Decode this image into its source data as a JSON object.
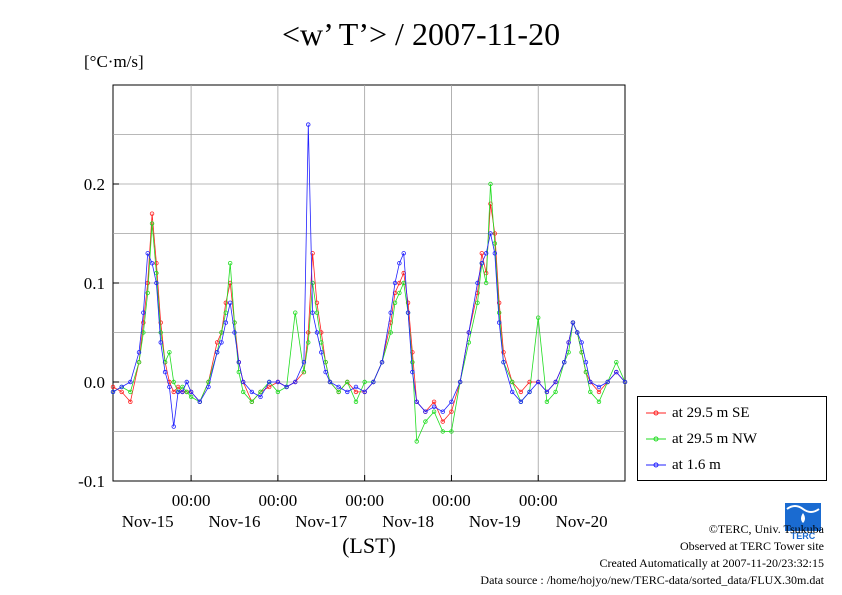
{
  "title": "<w’ T’> / 2007-11-20",
  "unit": "[°C·m/s]",
  "credits": {
    "copyright": "©TERC, Univ. Tsukuba",
    "observed": "Observed at TERC Tower site",
    "created": "Created Automatically at 2007-11-20/23:32:15",
    "source": "Data source : /home/hojyo/new/TERC-data/sorted_data/FLUX.30m.dat"
  },
  "logo_text": "TERC",
  "chart_data": {
    "type": "line",
    "title": "<w’ T’> / 2007-11-20",
    "ylabel": "[°C·m/s]",
    "xlabel": "(LST)",
    "ylim": [
      -0.1,
      0.3
    ],
    "xlim": [
      -0.9,
      5.0
    ],
    "grid": true,
    "legend_position": "bottom-right outside",
    "y_ticks": [
      -0.1,
      0.0,
      0.1,
      0.2
    ],
    "y_tick_labels": [
      "-0.1",
      "0.0",
      "0.1",
      "0.2"
    ],
    "x_ticks": [
      0,
      1,
      2,
      3,
      4
    ],
    "x_tick_time_label": "00:00",
    "x_tick_day_labels": [
      "Nov-15",
      "Nov-16",
      "Nov-17",
      "Nov-18",
      "Nov-19",
      "Nov-20"
    ],
    "x_unit": "days (00:00 of Nov-16 = 0)",
    "series": [
      {
        "name": "at 29.5 m SE",
        "color": "#ff2020",
        "x": [
          -0.9,
          -0.8,
          -0.7,
          -0.6,
          -0.55,
          -0.5,
          -0.45,
          -0.4,
          -0.35,
          -0.3,
          -0.25,
          -0.2,
          -0.15,
          -0.1,
          -0.05,
          0,
          0.1,
          0.2,
          0.3,
          0.35,
          0.4,
          0.45,
          0.5,
          0.55,
          0.6,
          0.7,
          0.8,
          0.9,
          1.0,
          1.1,
          1.2,
          1.3,
          1.35,
          1.4,
          1.45,
          1.5,
          1.55,
          1.6,
          1.7,
          1.8,
          1.9,
          2.0,
          2.1,
          2.2,
          2.3,
          2.35,
          2.4,
          2.45,
          2.5,
          2.55,
          2.6,
          2.7,
          2.8,
          2.9,
          3.0,
          3.1,
          3.2,
          3.3,
          3.35,
          3.4,
          3.45,
          3.5,
          3.55,
          3.6,
          3.7,
          3.8,
          3.9,
          4.0,
          4.1,
          4.2,
          4.3,
          4.35,
          4.4,
          4.45,
          4.5,
          4.55,
          4.6,
          4.7,
          4.8,
          4.9,
          5.0
        ],
        "values": [
          -0.005,
          -0.01,
          -0.02,
          0.02,
          0.06,
          0.1,
          0.17,
          0.12,
          0.06,
          0.02,
          0.0,
          -0.01,
          -0.005,
          -0.01,
          -0.01,
          -0.01,
          -0.02,
          0.0,
          0.04,
          0.05,
          0.08,
          0.1,
          0.06,
          0.02,
          0.0,
          -0.02,
          -0.01,
          -0.005,
          0.0,
          -0.005,
          0.0,
          0.01,
          0.05,
          0.13,
          0.08,
          0.05,
          0.02,
          0.0,
          -0.01,
          0.0,
          -0.01,
          -0.01,
          0.0,
          0.02,
          0.06,
          0.09,
          0.1,
          0.11,
          0.08,
          0.03,
          -0.02,
          -0.03,
          -0.02,
          -0.04,
          -0.03,
          0.0,
          0.05,
          0.09,
          0.13,
          0.11,
          0.18,
          0.15,
          0.08,
          0.03,
          0.0,
          -0.01,
          0.0,
          0.0,
          -0.01,
          0.0,
          0.02,
          0.04,
          0.06,
          0.05,
          0.03,
          0.01,
          0.0,
          -0.01,
          0.0,
          0.01,
          0.0
        ]
      },
      {
        "name": "at 29.5 m NW",
        "color": "#20dd20",
        "x": [
          -0.9,
          -0.8,
          -0.7,
          -0.6,
          -0.55,
          -0.5,
          -0.45,
          -0.4,
          -0.35,
          -0.3,
          -0.25,
          -0.2,
          -0.15,
          -0.1,
          -0.05,
          0,
          0.1,
          0.2,
          0.3,
          0.35,
          0.4,
          0.45,
          0.5,
          0.55,
          0.6,
          0.7,
          0.8,
          0.9,
          1.0,
          1.1,
          1.2,
          1.3,
          1.35,
          1.4,
          1.45,
          1.5,
          1.55,
          1.6,
          1.7,
          1.8,
          1.9,
          2.0,
          2.1,
          2.2,
          2.3,
          2.35,
          2.4,
          2.45,
          2.5,
          2.55,
          2.6,
          2.7,
          2.8,
          2.9,
          3.0,
          3.1,
          3.2,
          3.3,
          3.35,
          3.4,
          3.45,
          3.5,
          3.55,
          3.6,
          3.7,
          3.8,
          3.9,
          4.0,
          4.1,
          4.2,
          4.3,
          4.35,
          4.4,
          4.45,
          4.5,
          4.55,
          4.6,
          4.7,
          4.8,
          4.9,
          5.0
        ],
        "values": [
          -0.01,
          -0.005,
          -0.01,
          0.02,
          0.05,
          0.09,
          0.16,
          0.11,
          0.05,
          0.02,
          0.03,
          0.0,
          -0.01,
          -0.005,
          -0.01,
          -0.015,
          -0.02,
          0.0,
          0.03,
          0.05,
          0.07,
          0.12,
          0.06,
          0.01,
          -0.01,
          -0.02,
          -0.01,
          0.0,
          -0.01,
          -0.005,
          0.07,
          0.01,
          0.04,
          0.1,
          0.07,
          0.04,
          0.02,
          0.0,
          -0.01,
          0.0,
          -0.02,
          0.0,
          0.0,
          0.02,
          0.05,
          0.08,
          0.09,
          0.1,
          0.07,
          0.02,
          -0.06,
          -0.04,
          -0.03,
          -0.05,
          -0.05,
          0.0,
          0.04,
          0.08,
          0.12,
          0.1,
          0.2,
          0.14,
          0.07,
          0.02,
          0.0,
          -0.02,
          -0.01,
          0.065,
          -0.02,
          -0.01,
          0.02,
          0.03,
          0.06,
          0.05,
          0.03,
          0.01,
          -0.01,
          -0.02,
          0.0,
          0.02,
          0.0
        ]
      },
      {
        "name": "at 1.6 m",
        "color": "#2020ff",
        "x": [
          -0.9,
          -0.8,
          -0.7,
          -0.6,
          -0.55,
          -0.5,
          -0.45,
          -0.4,
          -0.35,
          -0.3,
          -0.25,
          -0.2,
          -0.15,
          -0.1,
          -0.05,
          0,
          0.1,
          0.2,
          0.3,
          0.35,
          0.4,
          0.45,
          0.5,
          0.55,
          0.6,
          0.7,
          0.8,
          0.9,
          1.0,
          1.1,
          1.2,
          1.3,
          1.35,
          1.4,
          1.45,
          1.5,
          1.55,
          1.6,
          1.7,
          1.8,
          1.9,
          2.0,
          2.1,
          2.2,
          2.3,
          2.35,
          2.4,
          2.45,
          2.5,
          2.55,
          2.6,
          2.7,
          2.8,
          2.9,
          3.0,
          3.1,
          3.2,
          3.3,
          3.35,
          3.4,
          3.45,
          3.5,
          3.55,
          3.6,
          3.7,
          3.8,
          3.9,
          4.0,
          4.1,
          4.2,
          4.3,
          4.35,
          4.4,
          4.45,
          4.5,
          4.55,
          4.6,
          4.7,
          4.8,
          4.9,
          5.0
        ],
        "values": [
          -0.01,
          -0.005,
          0.0,
          0.03,
          0.07,
          0.13,
          0.12,
          0.1,
          0.04,
          0.01,
          -0.005,
          -0.045,
          -0.01,
          -0.01,
          0.0,
          -0.01,
          -0.02,
          -0.005,
          0.03,
          0.04,
          0.06,
          0.08,
          0.05,
          0.02,
          0.0,
          -0.01,
          -0.015,
          0.0,
          0.0,
          -0.005,
          0.0,
          0.02,
          0.26,
          0.07,
          0.05,
          0.03,
          0.01,
          0.0,
          -0.005,
          -0.01,
          -0.005,
          -0.01,
          0.0,
          0.02,
          0.07,
          0.1,
          0.12,
          0.13,
          0.07,
          0.01,
          -0.02,
          -0.03,
          -0.025,
          -0.03,
          -0.02,
          0.0,
          0.05,
          0.1,
          0.12,
          0.13,
          0.15,
          0.13,
          0.06,
          0.02,
          -0.01,
          -0.02,
          -0.01,
          0.0,
          -0.01,
          0.0,
          0.02,
          0.04,
          0.06,
          0.05,
          0.04,
          0.02,
          0.0,
          -0.005,
          0.0,
          0.01,
          0.0
        ]
      }
    ]
  }
}
